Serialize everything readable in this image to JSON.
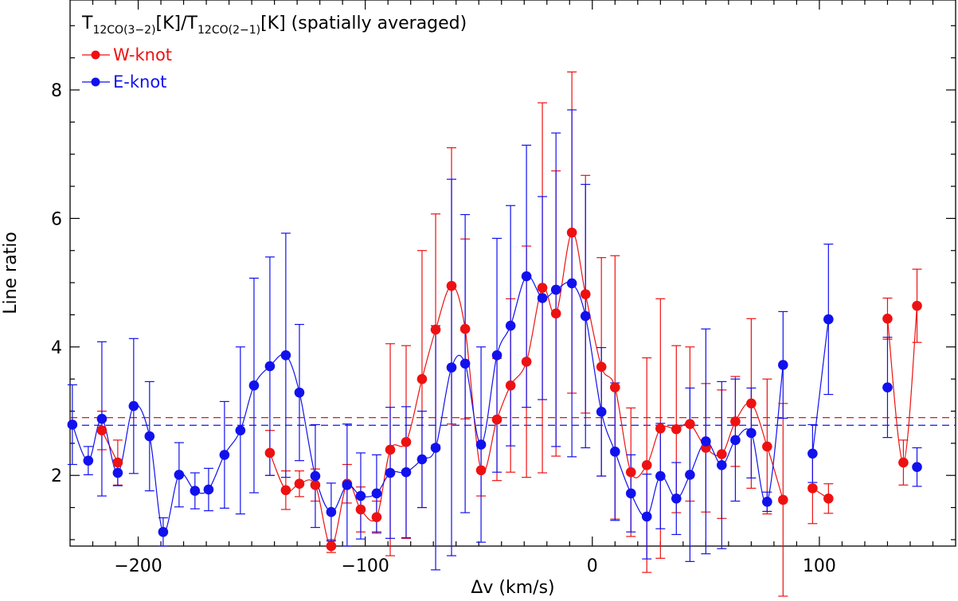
{
  "chart_data": {
    "type": "scatter",
    "title_parts": {
      "t1": "T",
      "sub1": "12CO(3−2)",
      "unit1": "[K]/",
      "t2": "T",
      "sub2": "12CO(2−1)",
      "unit2": "[K]",
      "suffix": " (spatially averaged)"
    },
    "xlabel": "Δv (km/s)",
    "ylabel": "Line ratio",
    "xlim": [
      -230,
      160
    ],
    "ylim": [
      0.9,
      9.4
    ],
    "xticks_major": [
      -200,
      -100,
      0,
      100
    ],
    "xtick_labels": [
      "−200",
      "−100",
      "0",
      "100"
    ],
    "yticks_major": [
      2,
      4,
      6,
      8
    ],
    "ytick_labels": [
      "2",
      "4",
      "6",
      "8"
    ],
    "legend_position": "top-left",
    "series": [
      {
        "name": "W-knot",
        "color": "#ee1111",
        "mean_line": 2.9,
        "points": [
          {
            "x": -216,
            "y": 2.7,
            "err": 0.3
          },
          {
            "x": -209,
            "y": 2.2,
            "err": 0.35
          },
          {
            "x": -142,
            "y": 2.35,
            "err": 0.35
          },
          {
            "x": -135,
            "y": 1.77,
            "err": 0.3
          },
          {
            "x": -129,
            "y": 1.87,
            "err": 0.2
          },
          {
            "x": -122,
            "y": 1.85,
            "err": 0.25
          },
          {
            "x": -115,
            "y": 0.9,
            "err": 0.1
          },
          {
            "x": -108,
            "y": 1.87,
            "err": 0.3
          },
          {
            "x": -102,
            "y": 1.47,
            "err": 0.35
          },
          {
            "x": -95,
            "y": 1.35,
            "err": 0.25
          },
          {
            "x": -89,
            "y": 2.4,
            "err": 1.65
          },
          {
            "x": -82,
            "y": 2.52,
            "err": 1.5
          },
          {
            "x": -75,
            "y": 3.5,
            "err": 2.0
          },
          {
            "x": -69,
            "y": 4.27,
            "err": 1.8
          },
          {
            "x": -62,
            "y": 4.95,
            "err": 2.15
          },
          {
            "x": -56,
            "y": 4.28,
            "err": 1.4
          },
          {
            "x": -49,
            "y": 2.08,
            "err": 0.4
          },
          {
            "x": -42,
            "y": 2.87,
            "err": 0.95
          },
          {
            "x": -36,
            "y": 3.4,
            "err": 1.35
          },
          {
            "x": -29,
            "y": 3.77,
            "err": 1.8
          },
          {
            "x": -22,
            "y": 4.92,
            "err": 2.88
          },
          {
            "x": -16,
            "y": 4.52,
            "err": 2.22
          },
          {
            "x": -9,
            "y": 5.78,
            "err": 2.5
          },
          {
            "x": -3,
            "y": 4.82,
            "err": 1.85
          },
          {
            "x": 4,
            "y": 3.69,
            "err": 1.7
          },
          {
            "x": 10,
            "y": 3.37,
            "err": 2.05
          },
          {
            "x": 17,
            "y": 2.05,
            "err": 1.0
          },
          {
            "x": 24,
            "y": 2.16,
            "err": 1.67
          },
          {
            "x": 30,
            "y": 2.73,
            "err": 2.02
          },
          {
            "x": 37,
            "y": 2.72,
            "err": 1.3
          },
          {
            "x": 43,
            "y": 2.8,
            "err": 1.2
          },
          {
            "x": 50,
            "y": 2.43,
            "err": 1.0
          },
          {
            "x": 57,
            "y": 2.33,
            "err": 1.0
          },
          {
            "x": 63,
            "y": 2.84,
            "err": 0.7
          },
          {
            "x": 70,
            "y": 3.12,
            "err": 1.32
          },
          {
            "x": 77,
            "y": 2.45,
            "err": 1.05
          },
          {
            "x": 84,
            "y": 1.62,
            "err": 1.5
          },
          {
            "x": 97,
            "y": 1.8,
            "err": 0.55
          },
          {
            "x": 104,
            "y": 1.64,
            "err": 0.23
          },
          {
            "x": 130,
            "y": 4.44,
            "err": 0.32
          },
          {
            "x": 137,
            "y": 2.2,
            "err": 0.35
          },
          {
            "x": 143,
            "y": 4.64,
            "err": 0.57
          }
        ],
        "segments": [
          [
            -216,
            -209
          ],
          [
            -142,
            -135,
            -129,
            -122,
            -115,
            -108,
            -102,
            -95,
            -89,
            -82,
            -75,
            -69,
            -62,
            -56,
            -49,
            -42,
            -36,
            -29,
            -22,
            -16,
            -9,
            -3,
            4,
            10,
            17,
            24,
            30,
            37,
            43,
            50,
            57,
            63,
            70,
            77,
            84
          ],
          [
            97,
            104
          ],
          [
            130,
            137,
            143
          ]
        ]
      },
      {
        "name": "E-knot",
        "color": "#1111ee",
        "mean_line": 2.78,
        "points": [
          {
            "x": -229,
            "y": 2.79,
            "err": 0.62
          },
          {
            "x": -222,
            "y": 2.23,
            "err": 0.22
          },
          {
            "x": -216,
            "y": 2.88,
            "err": 1.2
          },
          {
            "x": -209,
            "y": 2.04,
            "err": 0.2
          },
          {
            "x": -202,
            "y": 3.08,
            "err": 1.05
          },
          {
            "x": -195,
            "y": 2.61,
            "err": 0.85
          },
          {
            "x": -189,
            "y": 1.12,
            "err": 0.22
          },
          {
            "x": -182,
            "y": 2.01,
            "err": 0.5
          },
          {
            "x": -175,
            "y": 1.76,
            "err": 0.28
          },
          {
            "x": -169,
            "y": 1.78,
            "err": 0.33
          },
          {
            "x": -162,
            "y": 2.32,
            "err": 0.83
          },
          {
            "x": -155,
            "y": 2.7,
            "err": 1.3
          },
          {
            "x": -149,
            "y": 3.4,
            "err": 1.67
          },
          {
            "x": -142,
            "y": 3.7,
            "err": 1.7
          },
          {
            "x": -135,
            "y": 3.87,
            "err": 1.9
          },
          {
            "x": -129,
            "y": 3.29,
            "err": 1.06
          },
          {
            "x": -122,
            "y": 1.99,
            "err": 0.8
          },
          {
            "x": -115,
            "y": 1.43,
            "err": 0.45
          },
          {
            "x": -108,
            "y": 1.85,
            "err": 0.95
          },
          {
            "x": -102,
            "y": 1.68,
            "err": 0.67
          },
          {
            "x": -95,
            "y": 1.72,
            "err": 0.6
          },
          {
            "x": -89,
            "y": 2.04,
            "err": 1.02
          },
          {
            "x": -82,
            "y": 2.05,
            "err": 1.02
          },
          {
            "x": -75,
            "y": 2.25,
            "err": 0.75
          },
          {
            "x": -69,
            "y": 2.43,
            "err": 1.9
          },
          {
            "x": -62,
            "y": 3.68,
            "err": 2.93
          },
          {
            "x": -56,
            "y": 3.74,
            "err": 2.32
          },
          {
            "x": -49,
            "y": 2.48,
            "err": 1.52
          },
          {
            "x": -42,
            "y": 3.87,
            "err": 1.82
          },
          {
            "x": -36,
            "y": 4.33,
            "err": 1.87
          },
          {
            "x": -29,
            "y": 5.1,
            "err": 2.04
          },
          {
            "x": -22,
            "y": 4.76,
            "err": 1.58
          },
          {
            "x": -16,
            "y": 4.89,
            "err": 2.44
          },
          {
            "x": -9,
            "y": 4.99,
            "err": 2.7
          },
          {
            "x": -3,
            "y": 4.48,
            "err": 2.05
          },
          {
            "x": 4,
            "y": 2.99,
            "err": 1.0
          },
          {
            "x": 10,
            "y": 2.37,
            "err": 1.07
          },
          {
            "x": 17,
            "y": 1.72,
            "err": 0.6
          },
          {
            "x": 24,
            "y": 1.36,
            "err": 0.66
          },
          {
            "x": 30,
            "y": 1.99,
            "err": 0.82
          },
          {
            "x": 37,
            "y": 1.64,
            "err": 0.56
          },
          {
            "x": 43,
            "y": 2.01,
            "err": 1.35
          },
          {
            "x": 50,
            "y": 2.53,
            "err": 1.75
          },
          {
            "x": 57,
            "y": 2.16,
            "err": 1.3
          },
          {
            "x": 63,
            "y": 2.55,
            "err": 0.95
          },
          {
            "x": 70,
            "y": 2.66,
            "err": 0.7
          },
          {
            "x": 77,
            "y": 1.59,
            "err": 0.15
          },
          {
            "x": 84,
            "y": 3.72,
            "err": 0.83
          },
          {
            "x": 97,
            "y": 2.34,
            "err": 0.45
          },
          {
            "x": 104,
            "y": 4.43,
            "err": 1.17
          },
          {
            "x": 130,
            "y": 3.37,
            "err": 0.78
          },
          {
            "x": 143,
            "y": 2.13,
            "err": 0.3
          }
        ],
        "segments": [
          [
            -229,
            -222,
            -216,
            -209,
            -202,
            -195,
            -189,
            -182,
            -175,
            -169,
            -162,
            -155,
            -149,
            -142,
            -135,
            -129,
            -122,
            -115,
            -108,
            -102,
            -95,
            -89,
            -82,
            -75,
            -69,
            -62,
            -56,
            -49,
            -42,
            -36,
            -29,
            -22,
            -16,
            -9,
            -3,
            4,
            10,
            17,
            24,
            30,
            37,
            43,
            50,
            57,
            63,
            70,
            77,
            84
          ],
          [
            97,
            104
          ]
        ]
      }
    ]
  }
}
